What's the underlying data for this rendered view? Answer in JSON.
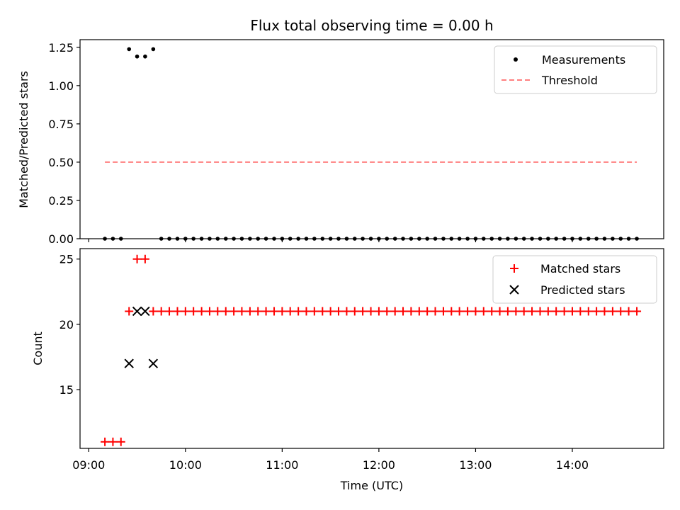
{
  "chart_data": [
    {
      "type": "scatter",
      "title": "Flux total observing time = 0.00 h",
      "xlabel": "",
      "ylabel": "Matched/Predicted stars",
      "xlim": [
        -0.09,
        5.945
      ],
      "ylim": [
        0,
        1.3
      ],
      "yticks": [
        0.0,
        0.25,
        0.5,
        0.75,
        1.0,
        1.25
      ],
      "ytick_labels": [
        "0.00",
        "0.25",
        "0.50",
        "0.75",
        "1.00",
        "1.25"
      ],
      "legend": {
        "placement": "top-right",
        "entries": [
          "Measurements",
          "Threshold"
        ]
      },
      "series": [
        {
          "name": "Measurements",
          "color": "#000000",
          "marker": "dot",
          "x": [
            0.167,
            0.25,
            0.333,
            0.417,
            0.5,
            0.583,
            0.667,
            0.75,
            0.833,
            0.917,
            1.0,
            1.083,
            1.167,
            1.25,
            1.333,
            1.417,
            1.5,
            1.583,
            1.667,
            1.75,
            1.833,
            1.917,
            2.0,
            2.083,
            2.167,
            2.25,
            2.333,
            2.417,
            2.5,
            2.583,
            2.667,
            2.75,
            2.833,
            2.917,
            3.0,
            3.083,
            3.167,
            3.25,
            3.333,
            3.417,
            3.5,
            3.583,
            3.667,
            3.75,
            3.833,
            3.917,
            4.0,
            4.083,
            4.167,
            4.25,
            4.333,
            4.417,
            4.5,
            4.583,
            4.667,
            4.75,
            4.833,
            4.917,
            5.0,
            5.083,
            5.167,
            5.25,
            5.333,
            5.417,
            5.5,
            5.583,
            5.667
          ],
          "y": [
            0,
            0,
            0,
            1.238,
            1.19,
            1.19,
            1.238,
            0,
            0,
            0,
            0,
            0,
            0,
            0,
            0,
            0,
            0,
            0,
            0,
            0,
            0,
            0,
            0,
            0,
            0,
            0,
            0,
            0,
            0,
            0,
            0,
            0,
            0,
            0,
            0,
            0,
            0,
            0,
            0,
            0,
            0,
            0,
            0,
            0,
            0,
            0,
            0,
            0,
            0,
            0,
            0,
            0,
            0,
            0,
            0,
            0,
            0,
            0,
            0,
            0,
            0,
            0,
            0,
            0,
            0,
            0,
            0
          ]
        },
        {
          "name": "Threshold",
          "color": "#ff7f7f",
          "style": "dashed",
          "x": [
            0.167,
            5.667
          ],
          "y": [
            0.5,
            0.5
          ]
        }
      ]
    },
    {
      "type": "scatter",
      "title": "",
      "xlabel": "Time (UTC)",
      "ylabel": "Count",
      "xlim": [
        -0.09,
        5.945
      ],
      "ylim": [
        10.5,
        25.8
      ],
      "yticks": [
        15,
        20,
        25
      ],
      "ytick_labels": [
        "15",
        "20",
        "25"
      ],
      "xticks": [
        0,
        1,
        2,
        3,
        4,
        5
      ],
      "xtick_labels": [
        "09:00",
        "10:00",
        "11:00",
        "12:00",
        "13:00",
        "14:00"
      ],
      "legend": {
        "placement": "top-right",
        "entries": [
          "Matched stars",
          "Predicted stars"
        ]
      },
      "series": [
        {
          "name": "Matched stars",
          "color": "#ff0000",
          "marker": "plus",
          "x": [
            0.167,
            0.25,
            0.333,
            0.417,
            0.5,
            0.583,
            0.667,
            0.75,
            0.833,
            0.917,
            1.0,
            1.083,
            1.167,
            1.25,
            1.333,
            1.417,
            1.5,
            1.583,
            1.667,
            1.75,
            1.833,
            1.917,
            2.0,
            2.083,
            2.167,
            2.25,
            2.333,
            2.417,
            2.5,
            2.583,
            2.667,
            2.75,
            2.833,
            2.917,
            3.0,
            3.083,
            3.167,
            3.25,
            3.333,
            3.417,
            3.5,
            3.583,
            3.667,
            3.75,
            3.833,
            3.917,
            4.0,
            4.083,
            4.167,
            4.25,
            4.333,
            4.417,
            4.5,
            4.583,
            4.667,
            4.75,
            4.833,
            4.917,
            5.0,
            5.083,
            5.167,
            5.25,
            5.333,
            5.417,
            5.5,
            5.583,
            5.667
          ],
          "y": [
            11,
            11,
            11,
            21,
            25,
            25,
            21,
            21,
            21,
            21,
            21,
            21,
            21,
            21,
            21,
            21,
            21,
            21,
            21,
            21,
            21,
            21,
            21,
            21,
            21,
            21,
            21,
            21,
            21,
            21,
            21,
            21,
            21,
            21,
            21,
            21,
            21,
            21,
            21,
            21,
            21,
            21,
            21,
            21,
            21,
            21,
            21,
            21,
            21,
            21,
            21,
            21,
            21,
            21,
            21,
            21,
            21,
            21,
            21,
            21,
            21,
            21,
            21,
            21,
            21,
            21,
            21
          ]
        },
        {
          "name": "Predicted stars",
          "color": "#000000",
          "marker": "x",
          "x": [
            0.417,
            0.5,
            0.583,
            0.667
          ],
          "y": [
            17,
            21,
            21,
            17
          ]
        }
      ]
    }
  ]
}
